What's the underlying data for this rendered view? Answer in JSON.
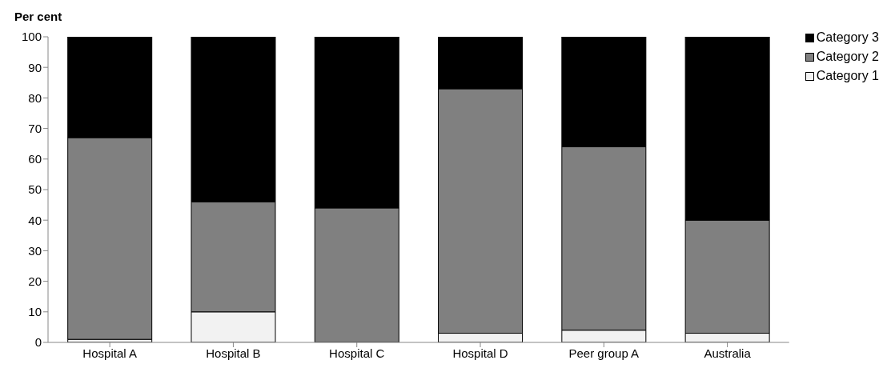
{
  "chart_data": {
    "type": "bar",
    "ylabel": "Per cent",
    "categories": [
      "Hospital A",
      "Hospital B",
      "Hospital C",
      "Hospital D",
      "Peer group A",
      "Australia"
    ],
    "stacked": true,
    "series": [
      {
        "name": "Category 1",
        "color": "#f2f2f2",
        "values": [
          1,
          10,
          0,
          3,
          4,
          3
        ]
      },
      {
        "name": "Category 2",
        "color": "#808080",
        "values": [
          66,
          36,
          44,
          80,
          60,
          37
        ]
      },
      {
        "name": "Category 3",
        "color": "#000000",
        "values": [
          33,
          54,
          56,
          17,
          36,
          60
        ]
      }
    ],
    "ylim": [
      0,
      100
    ],
    "yticks": [
      0,
      10,
      20,
      30,
      40,
      50,
      60,
      70,
      80,
      90,
      100
    ],
    "grid": false,
    "legend": "right"
  }
}
